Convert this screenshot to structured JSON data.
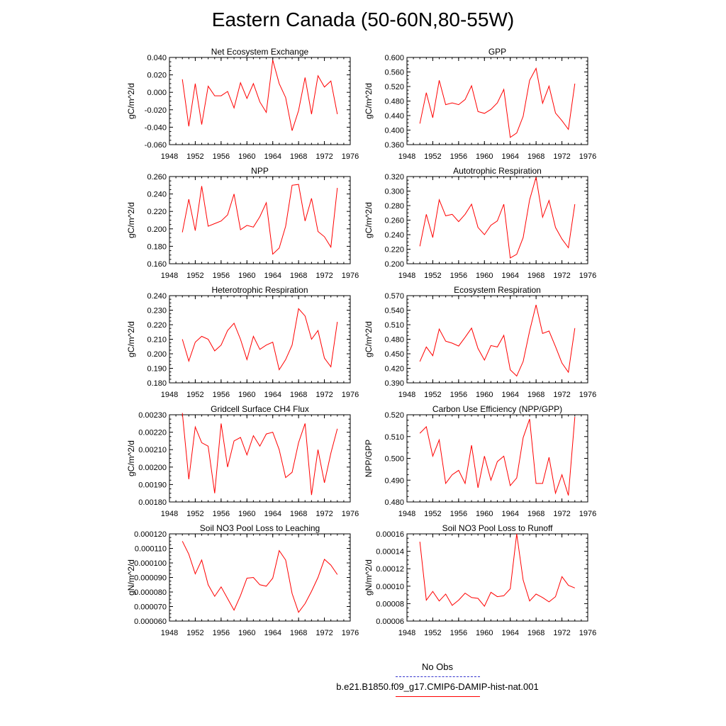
{
  "title": "Eastern Canada (50-60N,80-55W)",
  "legend": {
    "obs_label": "No Obs",
    "model_label": "b.e21.B1850.f09_g17.CMIP6-DAMIP-hist-nat.001",
    "obs_color": "#3333cc",
    "model_color": "#ff0000"
  },
  "colors": {
    "line": "#ff0000",
    "axis": "#000000"
  },
  "years": [
    1950,
    1951,
    1952,
    1953,
    1954,
    1955,
    1956,
    1957,
    1958,
    1959,
    1960,
    1961,
    1962,
    1963,
    1964,
    1965,
    1966,
    1967,
    1968,
    1969,
    1970,
    1971,
    1972,
    1973,
    1974
  ],
  "chart_data": [
    {
      "type": "line",
      "title": "Net Ecosystem Exchange",
      "ylabel": "gC/m^2/d",
      "xlim": [
        1948,
        1976
      ],
      "xticks": [
        "1948",
        "1952",
        "1956",
        "1960",
        "1964",
        "1968",
        "1972",
        "1976"
      ],
      "ylim": [
        -0.06,
        0.04
      ],
      "yticks": [
        "-0.060",
        "-0.040",
        "-0.020",
        "0.000",
        "0.020",
        "0.040"
      ],
      "values": [
        0.015,
        -0.039,
        0.01,
        -0.037,
        0.007,
        -0.004,
        -0.004,
        0.001,
        -0.018,
        0.011,
        -0.007,
        0.01,
        -0.011,
        -0.023,
        0.037,
        0.01,
        -0.006,
        -0.044,
        -0.021,
        0.017,
        -0.025,
        0.019,
        0.006,
        0.013,
        -0.025
      ]
    },
    {
      "type": "line",
      "title": "GPP",
      "ylabel": "gC/m^2/d",
      "xlim": [
        1948,
        1976
      ],
      "xticks": [
        "1948",
        "1952",
        "1956",
        "1960",
        "1964",
        "1968",
        "1972",
        "1976"
      ],
      "ylim": [
        0.36,
        0.6
      ],
      "yticks": [
        "0.360",
        "0.400",
        "0.440",
        "0.480",
        "0.520",
        "0.560",
        "0.600"
      ],
      "values": [
        0.418,
        0.503,
        0.434,
        0.537,
        0.47,
        0.475,
        0.47,
        0.484,
        0.522,
        0.451,
        0.446,
        0.457,
        0.475,
        0.512,
        0.38,
        0.392,
        0.438,
        0.537,
        0.57,
        0.474,
        0.521,
        0.447,
        0.426,
        0.402,
        0.528
      ]
    },
    {
      "type": "line",
      "title": "NPP",
      "ylabel": "gC/m^2/d",
      "xlim": [
        1948,
        1976
      ],
      "xticks": [
        "1948",
        "1952",
        "1956",
        "1960",
        "1964",
        "1968",
        "1972",
        "1976"
      ],
      "ylim": [
        0.16,
        0.26
      ],
      "yticks": [
        "0.160",
        "0.180",
        "0.200",
        "0.220",
        "0.240",
        "0.260"
      ],
      "values": [
        0.196,
        0.234,
        0.198,
        0.249,
        0.203,
        0.206,
        0.209,
        0.216,
        0.24,
        0.199,
        0.204,
        0.202,
        0.214,
        0.23,
        0.171,
        0.178,
        0.203,
        0.25,
        0.251,
        0.209,
        0.235,
        0.197,
        0.191,
        0.179,
        0.247
      ]
    },
    {
      "type": "line",
      "title": "Autotrophic Respiration",
      "ylabel": "gC/m^2/d",
      "xlim": [
        1948,
        1976
      ],
      "xticks": [
        "1948",
        "1952",
        "1956",
        "1960",
        "1964",
        "1968",
        "1972",
        "1976"
      ],
      "ylim": [
        0.2,
        0.32
      ],
      "yticks": [
        "0.200",
        "0.220",
        "0.240",
        "0.260",
        "0.280",
        "0.300",
        "0.320"
      ],
      "values": [
        0.224,
        0.268,
        0.236,
        0.288,
        0.266,
        0.268,
        0.258,
        0.268,
        0.282,
        0.25,
        0.24,
        0.253,
        0.259,
        0.282,
        0.208,
        0.213,
        0.236,
        0.288,
        0.319,
        0.264,
        0.287,
        0.25,
        0.234,
        0.222,
        0.282
      ]
    },
    {
      "type": "line",
      "title": "Heterotrophic Respiration",
      "ylabel": "gC/m^2/d",
      "xlim": [
        1948,
        1976
      ],
      "xticks": [
        "1948",
        "1952",
        "1956",
        "1960",
        "1964",
        "1968",
        "1972",
        "1976"
      ],
      "ylim": [
        0.18,
        0.24
      ],
      "yticks": [
        "0.180",
        "0.190",
        "0.200",
        "0.210",
        "0.220",
        "0.230",
        "0.240"
      ],
      "values": [
        0.21,
        0.195,
        0.208,
        0.212,
        0.21,
        0.202,
        0.206,
        0.216,
        0.221,
        0.21,
        0.196,
        0.212,
        0.203,
        0.206,
        0.208,
        0.189,
        0.196,
        0.206,
        0.231,
        0.226,
        0.21,
        0.216,
        0.197,
        0.191,
        0.222
      ]
    },
    {
      "type": "line",
      "title": "Ecosystem Respiration",
      "ylabel": "gC/m^2/d",
      "xlim": [
        1948,
        1976
      ],
      "xticks": [
        "1948",
        "1952",
        "1956",
        "1960",
        "1964",
        "1968",
        "1972",
        "1976"
      ],
      "ylim": [
        0.39,
        0.57
      ],
      "yticks": [
        "0.390",
        "0.420",
        "0.450",
        "0.480",
        "0.510",
        "0.540",
        "0.570"
      ],
      "values": [
        0.434,
        0.464,
        0.446,
        0.501,
        0.476,
        0.472,
        0.466,
        0.484,
        0.503,
        0.461,
        0.437,
        0.467,
        0.464,
        0.488,
        0.417,
        0.404,
        0.434,
        0.497,
        0.551,
        0.492,
        0.497,
        0.465,
        0.431,
        0.412,
        0.503
      ]
    },
    {
      "type": "line",
      "title": "Gridcell Surface CH4 Flux",
      "ylabel": "gC/m^2/d",
      "xlim": [
        1948,
        1976
      ],
      "xticks": [
        "1948",
        "1952",
        "1956",
        "1960",
        "1964",
        "1968",
        "1972",
        "1976"
      ],
      "ylim": [
        0.0018,
        0.0023
      ],
      "yticks": [
        "0.00180",
        "0.00190",
        "0.00200",
        "0.00210",
        "0.00220",
        "0.00230"
      ],
      "values": [
        0.00231,
        0.00193,
        0.00223,
        0.00214,
        0.00212,
        0.00185,
        0.00225,
        0.002,
        0.00215,
        0.00217,
        0.00207,
        0.00218,
        0.00212,
        0.00219,
        0.0022,
        0.0021,
        0.00194,
        0.00197,
        0.00214,
        0.00225,
        0.00184,
        0.0021,
        0.00191,
        0.00208,
        0.00222
      ]
    },
    {
      "type": "line",
      "title": "Carbon Use Efficiency (NPP/GPP)",
      "ylabel": "NPP/GPP",
      "xlim": [
        1948,
        1976
      ],
      "xticks": [
        "1948",
        "1952",
        "1956",
        "1960",
        "1964",
        "1968",
        "1972",
        "1976"
      ],
      "ylim": [
        0.48,
        0.52
      ],
      "yticks": [
        "0.480",
        "0.490",
        "0.500",
        "0.510",
        "0.520"
      ],
      "values": [
        0.5115,
        0.5145,
        0.501,
        0.5085,
        0.4885,
        0.4925,
        0.4945,
        0.4885,
        0.506,
        0.4865,
        0.501,
        0.49,
        0.4985,
        0.501,
        0.4875,
        0.491,
        0.5095,
        0.518,
        0.4885,
        0.4885,
        0.5005,
        0.484,
        0.4925,
        0.483,
        0.519
      ]
    },
    {
      "type": "line",
      "title": "Soil NO3 Pool Loss to Leaching",
      "ylabel": "gN/m^2/d",
      "xlim": [
        1948,
        1976
      ],
      "xticks": [
        "1948",
        "1952",
        "1956",
        "1960",
        "1964",
        "1968",
        "1972",
        "1976"
      ],
      "ylim": [
        6e-05,
        0.00012
      ],
      "yticks": [
        "0.000060",
        "0.000070",
        "0.000080",
        "0.000090",
        "0.000100",
        "0.000110",
        "0.000120"
      ],
      "values": [
        0.000115,
        0.000106,
        9.25e-05,
        0.000102,
        8.5e-05,
        7.7e-05,
        8.35e-05,
        7.55e-05,
        6.75e-05,
        7.75e-05,
        8.95e-05,
        9e-05,
        8.5e-05,
        8.4e-05,
        8.95e-05,
        0.0001085,
        0.000102,
        7.9e-05,
        6.6e-05,
        7.2e-05,
        8.05e-05,
        9e-05,
        0.0001025,
        9.85e-05,
        9.2e-05
      ]
    },
    {
      "type": "line",
      "title": "Soil NO3 Pool Loss to Runoff",
      "ylabel": "gN/m^2/d",
      "xlim": [
        1948,
        1976
      ],
      "xticks": [
        "1948",
        "1952",
        "1956",
        "1960",
        "1964",
        "1968",
        "1972",
        "1976"
      ],
      "ylim": [
        6e-05,
        0.00016
      ],
      "yticks": [
        "0.00006",
        "0.00008",
        "0.00010",
        "0.00012",
        "0.00014",
        "0.00016"
      ],
      "values": [
        0.000151,
        8.4e-05,
        9.4e-05,
        8.3e-05,
        9.1e-05,
        7.8e-05,
        8.4e-05,
        9.2e-05,
        8.7e-05,
        8.6e-05,
        7.7e-05,
        9.3e-05,
        8.8e-05,
        8.9e-05,
        9.7e-05,
        0.00016,
        0.000107,
        8.3e-05,
        9.1e-05,
        8.7e-05,
        8.2e-05,
        8.8e-05,
        0.000111,
        0.000101,
        9.8e-05
      ]
    }
  ]
}
